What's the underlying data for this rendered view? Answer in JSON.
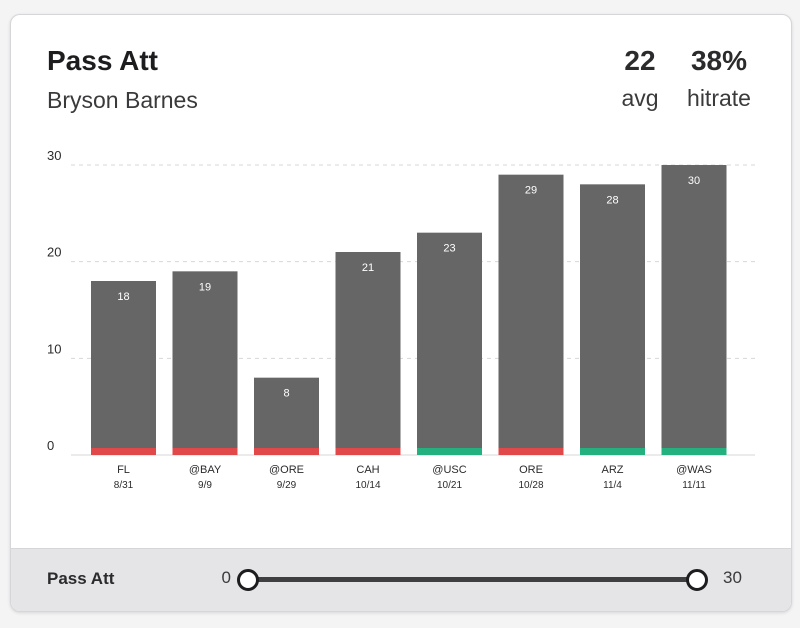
{
  "header": {
    "title": "Pass Att",
    "player": "Bryson Barnes",
    "avg_value": "22",
    "avg_label": "avg",
    "hitrate_value": "38%",
    "hitrate_label": "hitrate"
  },
  "footer": {
    "label": "Pass Att",
    "range_min": "0",
    "range_max": "30"
  },
  "colors": {
    "bar": "#666666",
    "miss": "#e0484a",
    "hit": "#24b07f",
    "grid": "#d7d7d9"
  },
  "chart_data": {
    "type": "bar",
    "title": "Pass Att",
    "categories": [
      "FL",
      "@BAY",
      "@ORE",
      "CAH",
      "@USC",
      "ORE",
      "ARZ",
      "@WAS"
    ],
    "dates": [
      "8/31",
      "9/9",
      "9/29",
      "10/14",
      "10/21",
      "10/28",
      "11/4",
      "11/11"
    ],
    "values": [
      18,
      19,
      8,
      21,
      23,
      29,
      28,
      30
    ],
    "outcomes": [
      "miss",
      "miss",
      "miss",
      "miss",
      "hit",
      "miss",
      "hit",
      "hit"
    ],
    "yticks": [
      0,
      10,
      20,
      30
    ],
    "ylim": [
      0,
      30
    ],
    "grid": true
  }
}
